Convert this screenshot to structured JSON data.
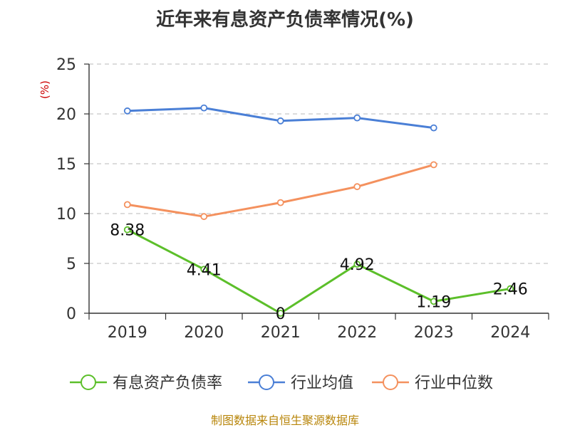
{
  "chart_data": {
    "type": "line",
    "title": "近年来有息资产负债率情况(%)",
    "ylabel": "(%)",
    "xlabel": "",
    "categories": [
      "2019",
      "2020",
      "2021",
      "2022",
      "2023",
      "2024"
    ],
    "ylim": [
      0,
      25
    ],
    "yticks": [
      0,
      5,
      10,
      15,
      20,
      25
    ],
    "grid": true,
    "legend_position": "bottom",
    "series": [
      {
        "name": "有息资产负债率",
        "values": [
          8.38,
          4.41,
          0,
          4.92,
          1.19,
          2.46
        ],
        "labels": [
          "8.38",
          "4.41",
          "0",
          "4.92",
          "1.19",
          "2.46"
        ],
        "color": "#5cbf2a"
      },
      {
        "name": "行业均值",
        "values": [
          20.3,
          20.6,
          19.3,
          19.6,
          18.6,
          null
        ],
        "color": "#4a7fd6"
      },
      {
        "name": "行业中位数",
        "values": [
          10.9,
          9.7,
          11.1,
          12.7,
          14.9,
          null
        ],
        "color": "#f4915e"
      }
    ]
  },
  "source": "制图数据来自恒生聚源数据库"
}
